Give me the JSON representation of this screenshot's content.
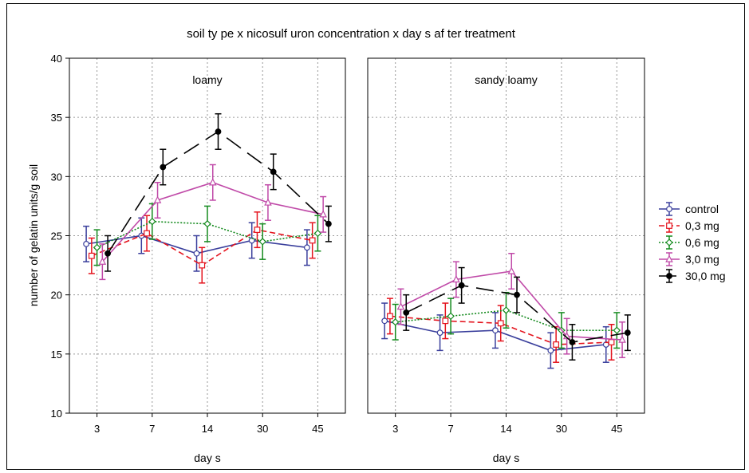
{
  "chart_data": {
    "type": "line",
    "title": "soil ty pe x nicosulf uron concentration x day s af ter treatment",
    "ylabel": "number of gelatin units/g soil",
    "xlabel": "day s",
    "ylim": [
      10,
      40
    ],
    "yticks": [
      10,
      15,
      20,
      25,
      30,
      35,
      40
    ],
    "categories": [
      "3",
      "7",
      "14",
      "30",
      "45"
    ],
    "grid": true,
    "legend_position": "right",
    "panels": [
      {
        "label": "loamy",
        "series": [
          {
            "name": "control",
            "values": [
              24.3,
              25.0,
              23.5,
              24.6,
              24.0
            ],
            "errors": [
              1.5,
              1.5,
              1.5,
              1.5,
              1.5
            ]
          },
          {
            "name": "0,3 mg",
            "values": [
              23.3,
              25.2,
              22.5,
              25.5,
              24.6
            ],
            "errors": [
              1.5,
              1.5,
              1.5,
              1.5,
              1.5
            ]
          },
          {
            "name": "0,6 mg",
            "values": [
              24.0,
              26.2,
              26.0,
              24.5,
              25.2
            ],
            "errors": [
              1.5,
              1.5,
              1.5,
              1.5,
              1.5
            ]
          },
          {
            "name": "3,0 mg",
            "values": [
              22.8,
              28.0,
              29.5,
              27.8,
              26.8
            ],
            "errors": [
              1.5,
              1.5,
              1.5,
              1.5,
              1.5
            ]
          },
          {
            "name": "30,0 mg",
            "values": [
              23.5,
              30.8,
              33.8,
              30.4,
              26.0
            ],
            "errors": [
              1.5,
              1.5,
              1.5,
              1.5,
              1.5
            ]
          }
        ]
      },
      {
        "label": "sandy loamy",
        "series": [
          {
            "name": "control",
            "values": [
              17.8,
              16.8,
              17.0,
              15.3,
              15.8
            ],
            "errors": [
              1.5,
              1.5,
              1.5,
              1.5,
              1.5
            ]
          },
          {
            "name": "0,3 mg",
            "values": [
              18.2,
              17.8,
              17.6,
              15.8,
              16.0
            ],
            "errors": [
              1.5,
              1.5,
              1.5,
              1.5,
              1.5
            ]
          },
          {
            "name": "0,6 mg",
            "values": [
              17.7,
              18.2,
              18.7,
              17.0,
              17.0
            ],
            "errors": [
              1.5,
              1.5,
              1.5,
              1.5,
              1.5
            ]
          },
          {
            "name": "3,0 mg",
            "values": [
              19.0,
              21.3,
              22.0,
              16.5,
              16.2
            ],
            "errors": [
              1.5,
              1.5,
              1.5,
              1.5,
              1.5
            ]
          },
          {
            "name": "30,0 mg",
            "values": [
              18.5,
              20.8,
              20.0,
              16.0,
              16.8
            ],
            "errors": [
              1.5,
              1.5,
              1.5,
              1.5,
              1.5
            ]
          }
        ]
      }
    ],
    "styles": [
      {
        "color": "#3a3f9c",
        "dash": "",
        "marker": "circle",
        "fill": "#ffffff"
      },
      {
        "color": "#e4141e",
        "dash": "7,4",
        "marker": "square",
        "fill": "#ffffff"
      },
      {
        "color": "#148a1e",
        "dash": "2,2",
        "marker": "diamond",
        "fill": "#ffffff"
      },
      {
        "color": "#c04aa8",
        "dash": "",
        "marker": "triangle",
        "fill": "#ffffff"
      },
      {
        "color": "#000000",
        "dash": "22,10",
        "marker": "circle",
        "fill": "#000000"
      }
    ]
  }
}
